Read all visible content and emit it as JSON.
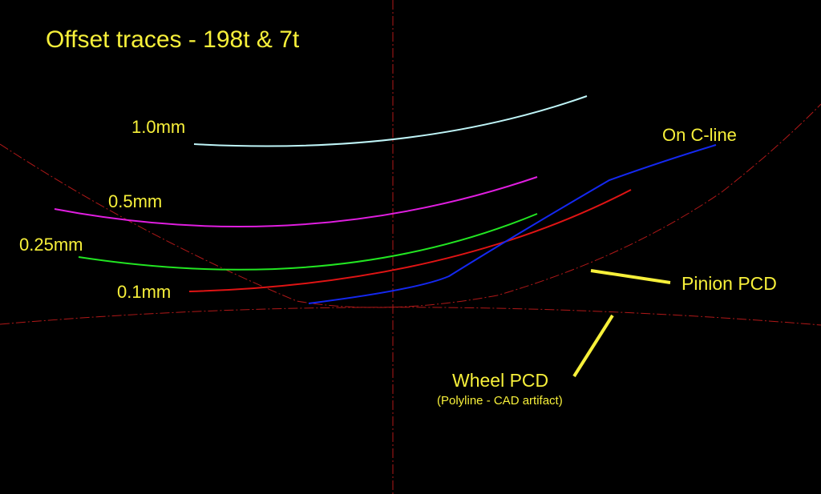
{
  "title": "Offset traces - 198t & 7t",
  "colors": {
    "background": "#000000",
    "label": "#f7f03a",
    "construction": "#b01818",
    "trace_1_0": "#bff5f8",
    "trace_0_5": "#e01ee0",
    "trace_0_25": "#22e622",
    "trace_0_1": "#e01414",
    "c_line": "#1428f0",
    "leader": "#f7f03a"
  },
  "offsets": [
    {
      "label": "1.0mm"
    },
    {
      "label": "0.5mm"
    },
    {
      "label": "0.25mm"
    },
    {
      "label": "0.1mm"
    }
  ],
  "c_line_label": "On C-line",
  "pinion_label": "Pinion PCD",
  "wheel_label": "Wheel PCD",
  "wheel_note": "(Polyline - CAD artifact)"
}
